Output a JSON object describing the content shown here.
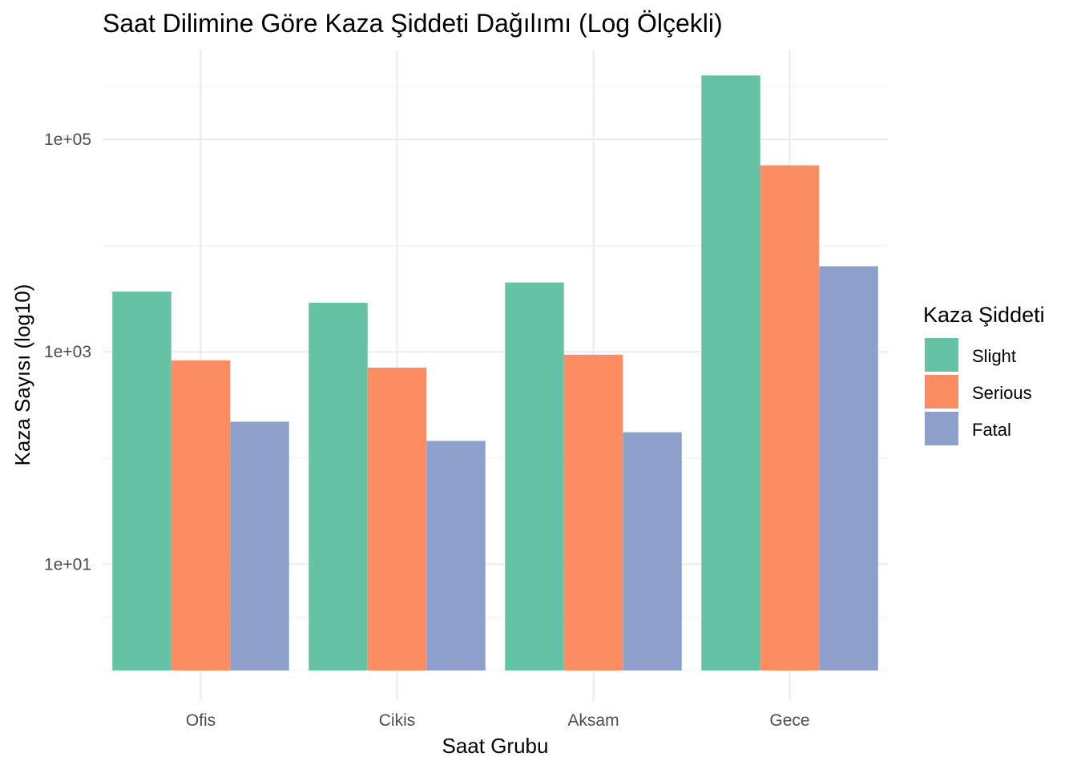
{
  "chart_data": {
    "type": "bar",
    "title": "Saat Dilimine Göre Kaza Şiddeti Dağılımı (Log Ölçekli)",
    "xlabel": "Saat Grubu",
    "ylabel": "Kaza Sayısı (log10)",
    "y_scale": "log10",
    "ylim": [
      1,
      700000
    ],
    "y_ticks": [
      10,
      1000,
      100000
    ],
    "y_tick_labels": [
      "1e+01",
      "1e+03",
      "1e+05"
    ],
    "categories": [
      "Ofis",
      "Cikis",
      "Aksam",
      "Gece"
    ],
    "legend_title": "Kaza Şiddeti",
    "legend_position": "right",
    "grid": true,
    "series": [
      {
        "name": "Slight",
        "color": "#66c2a5",
        "values": [
          3700,
          2900,
          4500,
          400000
        ]
      },
      {
        "name": "Serious",
        "color": "#fc8d62",
        "values": [
          830,
          710,
          940,
          57000
        ]
      },
      {
        "name": "Fatal",
        "color": "#8da0cb",
        "values": [
          220,
          145,
          175,
          6400
        ]
      }
    ]
  }
}
